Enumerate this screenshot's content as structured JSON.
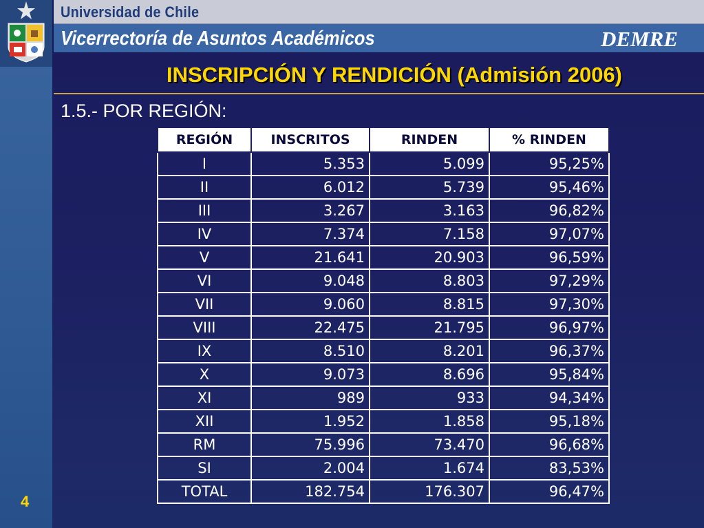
{
  "header": {
    "university": "Universidad de Chile",
    "vicerrectoria": "Vicerrectoría de Asuntos Académicos",
    "department": "DEMRE"
  },
  "title": "INSCRIPCIÓN Y RENDICIÓN (Admisión 2006)",
  "subtitle": "1.5.- POR REGIÓN:",
  "table": {
    "headers": [
      "REGIÓN",
      "INSCRITOS",
      "RINDEN",
      "% RINDEN"
    ],
    "rows": [
      [
        "I",
        "5.353",
        "5.099",
        "95,25%"
      ],
      [
        "II",
        "6.012",
        "5.739",
        "95,46%"
      ],
      [
        "III",
        "3.267",
        "3.163",
        "96,82%"
      ],
      [
        "IV",
        "7.374",
        "7.158",
        "97,07%"
      ],
      [
        "V",
        "21.641",
        "20.903",
        "96,59%"
      ],
      [
        "VI",
        "9.048",
        "8.803",
        "97,29%"
      ],
      [
        "VII",
        "9.060",
        "8.815",
        "97,30%"
      ],
      [
        "VIII",
        "22.475",
        "21.795",
        "96,97%"
      ],
      [
        "IX",
        "8.510",
        "8.201",
        "96,37%"
      ],
      [
        "X",
        "9.073",
        "8.696",
        "95,84%"
      ],
      [
        "XI",
        "989",
        "933",
        "94,34%"
      ],
      [
        "XII",
        "1.952",
        "1.858",
        "95,18%"
      ],
      [
        "RM",
        "75.996",
        "73.470",
        "96,68%"
      ],
      [
        "SI",
        "2.004",
        "1.674",
        "83,53%"
      ],
      [
        "TOTAL",
        "182.754",
        "176.307",
        "96,47%"
      ]
    ]
  },
  "slide_number": "4",
  "colors": {
    "title": "#ffd700",
    "background": "#161a58",
    "sidebar": "#2f5a94"
  }
}
